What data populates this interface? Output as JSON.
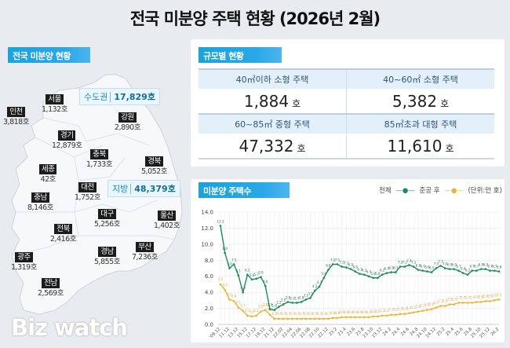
{
  "title": "전국 미분양 주택 현황  (2026년 2월)",
  "map": {
    "tag": "전국 미분양 현황",
    "capital": {
      "label": "수도권",
      "value": "17,829호"
    },
    "provincial": {
      "label": "지방",
      "value": "48,379호"
    },
    "regions": [
      {
        "name": "인천",
        "value": "3,818호"
      },
      {
        "name": "서울",
        "value": "1,132호"
      },
      {
        "name": "강원",
        "value": "2,890호"
      },
      {
        "name": "경기",
        "value": "12,879호"
      },
      {
        "name": "충북",
        "value": "1,733호"
      },
      {
        "name": "경북",
        "value": "5,052호"
      },
      {
        "name": "세종",
        "value": "42호"
      },
      {
        "name": "대전",
        "value": "1,752호"
      },
      {
        "name": "충남",
        "value": "8,146호"
      },
      {
        "name": "대구",
        "value": "5,256호"
      },
      {
        "name": "울산",
        "value": "1,402호"
      },
      {
        "name": "전북",
        "value": "2,416호"
      },
      {
        "name": "경남",
        "value": "5,855호"
      },
      {
        "name": "부산",
        "value": "7,236호"
      },
      {
        "name": "광주",
        "value": "1,319호"
      },
      {
        "name": "전남",
        "value": "2,569호"
      }
    ],
    "watermark": "Biz watch"
  },
  "size": {
    "tag": "규모별 현황",
    "unit": "호",
    "cells": [
      {
        "label": "40㎡이하 소형 주택",
        "value": "1,884"
      },
      {
        "label": "40~60㎡ 소형 주택",
        "value": "5,382"
      },
      {
        "label": "60~85㎡ 중형 주택",
        "value": "47,332"
      },
      {
        "label": "85㎡초과 대형 주택",
        "value": "11,610"
      }
    ]
  },
  "chart_data": {
    "type": "line",
    "tag": "미분양 주택수",
    "unit_note": "(단위:만 호)",
    "ylim": [
      0,
      14
    ],
    "yticks": [
      "0.0",
      "2.0",
      "4.0",
      "6.0",
      "8.0",
      "10.0",
      "12.0",
      "14.0"
    ],
    "grid": true,
    "legend_position": "top-right",
    "x": [
      "'09.12",
      "10.12",
      "11.12",
      "12.12",
      "13.12",
      "14.12",
      "15.12",
      "16.12",
      "17.12",
      "18.12",
      "19.12",
      "20.12",
      "21.12",
      "22.1",
      "22.02",
      "22.3",
      "22.04",
      "22.5",
      "22.06",
      "22.7",
      "22.08",
      "22.9",
      "22.10",
      "22.11",
      "22.12",
      "23.1",
      "23.2",
      "23.3",
      "23.4",
      "23.5",
      "23.6",
      "23.7",
      "23.8",
      "23.9",
      "23.10",
      "23.11",
      "23.12",
      "24.1",
      "24.2",
      "24.3",
      "24.4",
      "24.5",
      "24.6",
      "24.7",
      "24.8",
      "24.9",
      "24.10",
      "24.11",
      "24.12",
      "25.1",
      "25.2",
      "25.3",
      "25.4",
      "25.5",
      "25.6",
      "25.7",
      "25.8",
      "25.9",
      "25.10",
      "25.11",
      "25.12",
      "26.1",
      "26.2"
    ],
    "xticks_shown": [
      "'09.12",
      "11.12",
      "13.12",
      "15.12",
      "17.12",
      "19.12",
      "21.12",
      "22.02",
      "22.04",
      "22.06",
      "22.08",
      "22.10",
      "22.12",
      "23.2",
      "23.4",
      "23.6",
      "23.8",
      "23.10",
      "23.12",
      "24.2",
      "24.4",
      "24.6",
      "24.8",
      "24.10",
      "24.12",
      "25.2",
      "25.4",
      "25.6",
      "25.8",
      "25.10",
      "25.12",
      "26.2"
    ],
    "series": [
      {
        "name": "전체",
        "color": "#1e8a5a",
        "values": [
          12.3,
          8.9,
          7.0,
          7.5,
          6.1,
          4.0,
          6.2,
          5.6,
          5.7,
          5.9,
          4.8,
          1.9,
          1.8,
          2.2,
          2.5,
          2.8,
          2.7,
          2.7,
          2.8,
          3.1,
          3.3,
          4.2,
          4.7,
          5.8,
          6.8,
          7.5,
          7.5,
          7.2,
          7.1,
          6.9,
          6.6,
          6.3,
          6.2,
          6.0,
          5.8,
          5.8,
          6.2,
          6.4,
          6.5,
          6.5,
          7.2,
          7.2,
          7.4,
          7.2,
          6.8,
          6.7,
          6.6,
          6.5,
          7.0,
          7.3,
          7.0,
          6.9,
          6.9,
          6.7,
          6.4,
          6.2,
          6.7,
          6.7,
          6.9,
          6.9,
          6.7,
          6.7,
          6.6
        ]
      },
      {
        "name": "준공 후",
        "color": "#e8b43a",
        "values": [
          5.0,
          4.3,
          3.1,
          2.9,
          2.1,
          1.7,
          1.1,
          1.0,
          1.1,
          1.6,
          1.8,
          1.2,
          0.7,
          0.7,
          0.7,
          0.7,
          0.7,
          0.7,
          0.7,
          0.7,
          0.7,
          0.7,
          0.7,
          0.7,
          0.7,
          0.8,
          0.8,
          0.9,
          0.9,
          0.9,
          0.9,
          0.9,
          0.9,
          0.9,
          1.0,
          1.0,
          1.1,
          1.1,
          1.2,
          1.2,
          1.3,
          1.3,
          1.4,
          1.5,
          1.6,
          1.7,
          1.8,
          1.9,
          2.1,
          2.3,
          2.3,
          2.5,
          2.5,
          2.7,
          2.7,
          2.7,
          2.7,
          2.8,
          2.8,
          2.9,
          2.9,
          3.0,
          3.1
        ]
      }
    ]
  }
}
